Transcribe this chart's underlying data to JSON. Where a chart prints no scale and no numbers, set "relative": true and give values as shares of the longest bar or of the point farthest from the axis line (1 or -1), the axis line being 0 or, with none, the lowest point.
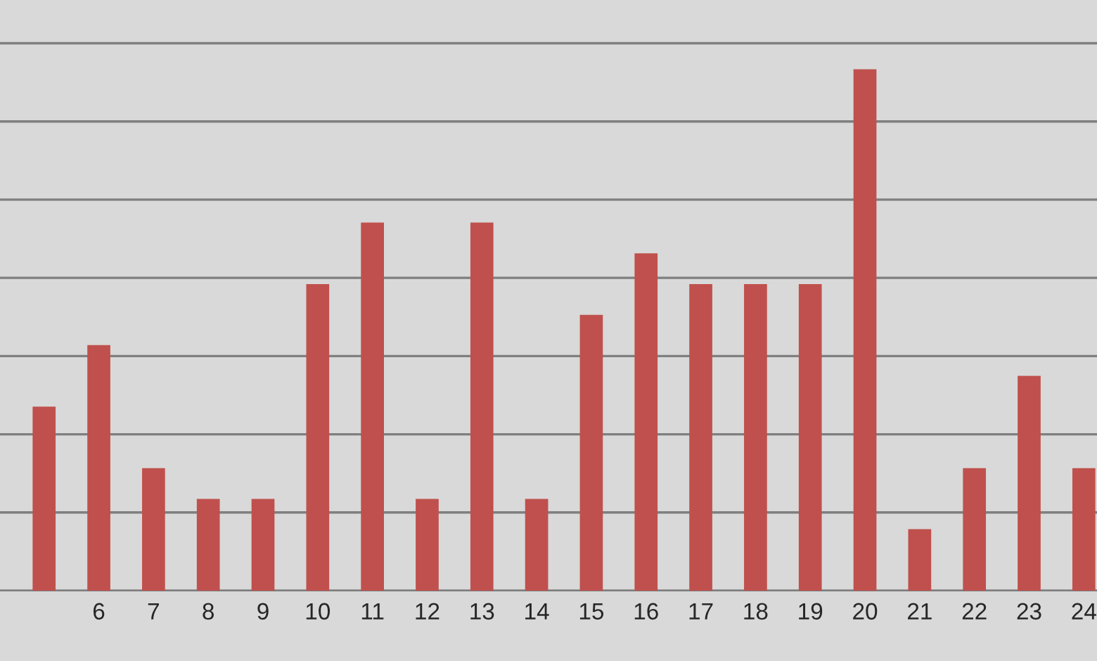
{
  "chart_data": {
    "type": "bar",
    "relative": true,
    "grid": "y",
    "categories": [
      null,
      "6",
      "7",
      "8",
      "9",
      "10",
      "11",
      "12",
      "13",
      "14",
      "15",
      "16",
      "17",
      "18",
      "19",
      "20",
      "21",
      "22",
      "23",
      "24"
    ],
    "values": [
      0.353,
      0.471,
      0.235,
      0.176,
      0.176,
      0.588,
      0.706,
      0.176,
      0.706,
      0.176,
      0.529,
      0.647,
      0.588,
      0.588,
      0.588,
      1,
      0.118,
      0.235,
      0.412,
      0.235
    ],
    "color": "#c0504d"
  }
}
